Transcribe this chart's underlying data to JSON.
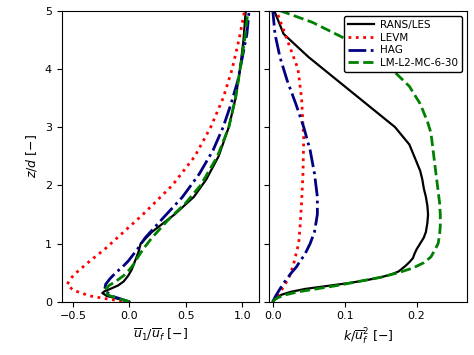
{
  "left_xlabel": "$\\overline{u}_1/\\overline{u}_f\\ [-]$",
  "right_xlabel": "$k/\\overline{u}_f^2\\ [-]$",
  "ylabel": "$z/d\\ [-]$",
  "xlim_left": [
    -0.6,
    1.15
  ],
  "xlim_right": [
    -0.005,
    0.27
  ],
  "ylim": [
    0,
    5
  ],
  "yticks": [
    0,
    1,
    2,
    3,
    4,
    5
  ],
  "xticks_left": [
    -0.5,
    0.0,
    0.5,
    1.0
  ],
  "xticks_right": [
    0.0,
    0.1,
    0.2
  ],
  "line_styles": [
    {
      "color": "black",
      "ls": "-",
      "lw": 1.6,
      "label": "RANS/LES"
    },
    {
      "color": "red",
      "ls": ":",
      "lw": 2.0,
      "label": "LEVM"
    },
    {
      "color": "navy",
      "ls": "-.",
      "lw": 2.0,
      "label": "HAG"
    },
    {
      "color": "green",
      "ls": "--",
      "lw": 2.0,
      "label": "LM-L2-MC-6-30"
    }
  ],
  "left_rans_z": [
    0.0,
    0.05,
    0.1,
    0.15,
    0.18,
    0.22,
    0.28,
    0.35,
    0.45,
    0.55,
    0.65,
    0.75,
    0.85,
    1.0,
    1.2,
    1.5,
    1.8,
    2.1,
    2.5,
    3.0,
    3.5,
    4.0,
    4.5,
    5.0
  ],
  "left_rans_u": [
    0.0,
    -0.1,
    -0.2,
    -0.24,
    -0.22,
    -0.17,
    -0.1,
    -0.05,
    -0.01,
    0.02,
    0.04,
    0.06,
    0.08,
    0.1,
    0.2,
    0.4,
    0.57,
    0.68,
    0.79,
    0.88,
    0.94,
    0.98,
    1.01,
    1.03
  ],
  "left_levm_z": [
    0.0,
    0.02,
    0.05,
    0.1,
    0.2,
    0.3,
    0.4,
    0.5,
    0.7,
    0.9,
    1.2,
    1.5,
    2.0,
    2.5,
    3.0,
    3.5,
    4.0,
    4.5,
    5.0
  ],
  "left_levm_u": [
    0.0,
    -0.1,
    -0.2,
    -0.35,
    -0.5,
    -0.55,
    -0.52,
    -0.47,
    -0.35,
    -0.22,
    -0.05,
    0.12,
    0.38,
    0.58,
    0.72,
    0.83,
    0.91,
    0.97,
    1.02
  ],
  "left_hag_z": [
    0.0,
    0.05,
    0.1,
    0.2,
    0.3,
    0.4,
    0.5,
    0.6,
    0.7,
    0.9,
    1.1,
    1.4,
    1.8,
    2.2,
    2.6,
    3.0,
    3.4,
    3.8,
    4.2,
    4.6,
    5.0
  ],
  "left_hag_u": [
    0.0,
    -0.08,
    -0.16,
    -0.22,
    -0.21,
    -0.17,
    -0.12,
    -0.06,
    -0.01,
    0.07,
    0.14,
    0.28,
    0.47,
    0.62,
    0.74,
    0.83,
    0.9,
    0.96,
    1.0,
    1.04,
    1.06
  ],
  "left_lm_z": [
    0.0,
    0.05,
    0.1,
    0.15,
    0.2,
    0.28,
    0.35,
    0.45,
    0.55,
    0.65,
    0.75,
    0.9,
    1.1,
    1.4,
    1.7,
    2.0,
    2.5,
    3.0,
    3.5,
    4.0,
    4.5,
    5.0
  ],
  "left_lm_u": [
    0.0,
    -0.09,
    -0.17,
    -0.21,
    -0.22,
    -0.18,
    -0.12,
    -0.05,
    0.0,
    0.04,
    0.07,
    0.12,
    0.2,
    0.34,
    0.5,
    0.63,
    0.78,
    0.88,
    0.94,
    0.98,
    1.02,
    1.05
  ],
  "right_rans_z": [
    0.0,
    0.03,
    0.07,
    0.12,
    0.17,
    0.22,
    0.27,
    0.32,
    0.37,
    0.42,
    0.47,
    0.52,
    0.57,
    0.62,
    0.68,
    0.75,
    0.82,
    0.9,
    1.0,
    1.1,
    1.2,
    1.35,
    1.5,
    1.65,
    1.8,
    1.95,
    2.1,
    2.25,
    2.4,
    2.55,
    2.7,
    2.85,
    3.0,
    3.2,
    3.5,
    3.8,
    4.2,
    4.6,
    5.0
  ],
  "right_rans_k": [
    0.0,
    0.002,
    0.005,
    0.012,
    0.025,
    0.045,
    0.075,
    0.105,
    0.13,
    0.15,
    0.165,
    0.175,
    0.18,
    0.185,
    0.19,
    0.195,
    0.197,
    0.2,
    0.205,
    0.21,
    0.213,
    0.215,
    0.216,
    0.215,
    0.213,
    0.21,
    0.208,
    0.205,
    0.2,
    0.195,
    0.19,
    0.18,
    0.17,
    0.15,
    0.12,
    0.09,
    0.05,
    0.015,
    0.002
  ],
  "right_levm_z": [
    0.0,
    0.1,
    0.2,
    0.4,
    0.6,
    0.8,
    1.0,
    1.3,
    1.7,
    2.2,
    2.8,
    3.5,
    4.0,
    4.5,
    5.0
  ],
  "right_levm_k": [
    0.0,
    0.005,
    0.012,
    0.022,
    0.028,
    0.032,
    0.036,
    0.038,
    0.04,
    0.042,
    0.043,
    0.04,
    0.035,
    0.02,
    0.005
  ],
  "right_hag_z": [
    0.0,
    0.1,
    0.2,
    0.3,
    0.4,
    0.5,
    0.6,
    0.7,
    0.8,
    1.0,
    1.2,
    1.5,
    1.8,
    2.2,
    2.6,
    3.0,
    3.4,
    3.8,
    4.2,
    4.6,
    5.0
  ],
  "right_hag_k": [
    0.0,
    0.004,
    0.009,
    0.014,
    0.02,
    0.026,
    0.033,
    0.038,
    0.044,
    0.052,
    0.058,
    0.062,
    0.062,
    0.058,
    0.052,
    0.043,
    0.032,
    0.02,
    0.01,
    0.003,
    0.0
  ],
  "right_lm_z": [
    0.0,
    0.03,
    0.07,
    0.12,
    0.17,
    0.22,
    0.28,
    0.35,
    0.42,
    0.5,
    0.58,
    0.67,
    0.77,
    0.88,
    1.0,
    1.15,
    1.3,
    1.5,
    1.7,
    1.9,
    2.1,
    2.3,
    2.5,
    2.7,
    2.9,
    3.1,
    3.4,
    3.7,
    4.0,
    4.4,
    4.8,
    5.0
  ],
  "right_lm_k": [
    0.0,
    0.002,
    0.007,
    0.018,
    0.035,
    0.06,
    0.09,
    0.12,
    0.15,
    0.175,
    0.195,
    0.21,
    0.22,
    0.225,
    0.23,
    0.232,
    0.233,
    0.233,
    0.232,
    0.23,
    0.228,
    0.226,
    0.224,
    0.222,
    0.22,
    0.215,
    0.205,
    0.19,
    0.165,
    0.12,
    0.055,
    0.01
  ]
}
